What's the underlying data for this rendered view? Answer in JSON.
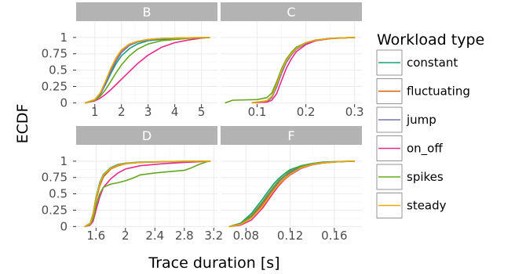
{
  "chart_data": {
    "type": "line",
    "ylabel": "ECDF",
    "xlabel": "Trace duration [s]",
    "legend": {
      "title": "Workload type",
      "placement": "right",
      "entries": [
        "constant",
        "fluctuating",
        "jump",
        "on_off",
        "spikes",
        "steady"
      ]
    },
    "colors": {
      "constant": "#1b9e77",
      "fluctuating": "#d95f02",
      "jump": "#7570b3",
      "on_off": "#e7298a",
      "spikes": "#66a61e",
      "steady": "#e6ab02"
    },
    "y_ticks": [
      0,
      0.25,
      0.5,
      0.75,
      1
    ],
    "y_tick_labels": [
      "0",
      "0.25",
      "0.5",
      "0.75",
      "1"
    ],
    "ylim": [
      -0.02,
      1.25
    ],
    "grid": true,
    "facets": [
      {
        "label": "B",
        "x_ticks": [
          1,
          2,
          3,
          4,
          5
        ],
        "x_tick_labels": [
          "1",
          "2",
          "3",
          "4",
          "5"
        ],
        "xlim": [
          0.3,
          5.6
        ],
        "series": [
          {
            "name": "constant",
            "x": [
              0.65,
              1.0,
              1.2,
              1.4,
              1.6,
              1.8,
              2.0,
              2.3,
              2.6,
              3.0,
              3.5,
              4.0,
              4.5,
              5.0,
              5.3
            ],
            "y": [
              0,
              0.05,
              0.13,
              0.28,
              0.45,
              0.6,
              0.72,
              0.83,
              0.9,
              0.95,
              0.97,
              0.98,
              0.99,
              0.995,
              1
            ]
          },
          {
            "name": "fluctuating",
            "x": [
              0.65,
              1.0,
              1.2,
              1.4,
              1.6,
              1.8,
              2.0,
              2.3,
              2.6,
              3.0,
              3.5,
              4.0,
              4.5,
              5.0,
              5.3
            ],
            "y": [
              0,
              0.05,
              0.14,
              0.32,
              0.52,
              0.68,
              0.8,
              0.9,
              0.94,
              0.97,
              0.985,
              0.99,
              0.995,
              0.998,
              1
            ]
          },
          {
            "name": "jump",
            "x": [
              0.65,
              1.0,
              1.2,
              1.4,
              1.6,
              1.8,
              2.0,
              2.3,
              2.6,
              3.0,
              3.5,
              4.0,
              4.5,
              5.0,
              5.3
            ],
            "y": [
              0,
              0.04,
              0.12,
              0.29,
              0.48,
              0.64,
              0.77,
              0.88,
              0.93,
              0.96,
              0.98,
              0.99,
              0.995,
              0.998,
              1
            ]
          },
          {
            "name": "on_off",
            "x": [
              0.65,
              1.0,
              1.2,
              1.4,
              1.6,
              1.8,
              2.0,
              2.3,
              2.6,
              3.0,
              3.5,
              4.0,
              4.5,
              5.0,
              5.3
            ],
            "y": [
              0,
              0.03,
              0.07,
              0.13,
              0.2,
              0.28,
              0.36,
              0.48,
              0.6,
              0.73,
              0.85,
              0.92,
              0.96,
              0.99,
              1
            ]
          },
          {
            "name": "spikes",
            "x": [
              0.65,
              1.0,
              1.2,
              1.4,
              1.6,
              1.8,
              2.0,
              2.3,
              2.6,
              3.0,
              3.5,
              4.0,
              4.5,
              5.0,
              5.3
            ],
            "y": [
              0,
              0.04,
              0.1,
              0.2,
              0.33,
              0.46,
              0.58,
              0.72,
              0.82,
              0.9,
              0.95,
              0.97,
              0.985,
              0.995,
              1
            ]
          },
          {
            "name": "steady",
            "x": [
              0.65,
              1.0,
              1.2,
              1.4,
              1.6,
              1.8,
              2.0,
              2.3,
              2.6,
              3.0,
              3.5,
              4.0,
              4.5,
              5.0,
              5.3
            ],
            "y": [
              0,
              0.05,
              0.15,
              0.33,
              0.53,
              0.69,
              0.81,
              0.9,
              0.94,
              0.97,
              0.985,
              0.99,
              0.995,
              0.998,
              1
            ]
          }
        ]
      },
      {
        "label": "C",
        "x_ticks": [
          0.1,
          0.2,
          0.3
        ],
        "x_tick_labels": [
          "0.1",
          "0.2",
          "0.3"
        ],
        "xlim": [
          0.025,
          0.315
        ],
        "series": [
          {
            "name": "constant",
            "x": [
              0.09,
              0.12,
              0.13,
              0.14,
              0.15,
              0.16,
              0.17,
              0.18,
              0.2,
              0.22,
              0.25,
              0.28,
              0.3
            ],
            "y": [
              0,
              0.03,
              0.1,
              0.28,
              0.5,
              0.66,
              0.76,
              0.84,
              0.92,
              0.96,
              0.985,
              0.995,
              1
            ]
          },
          {
            "name": "fluctuating",
            "x": [
              0.09,
              0.12,
              0.13,
              0.14,
              0.15,
              0.16,
              0.17,
              0.18,
              0.2,
              0.22,
              0.25,
              0.28,
              0.3
            ],
            "y": [
              0,
              0.03,
              0.09,
              0.26,
              0.47,
              0.63,
              0.74,
              0.82,
              0.91,
              0.955,
              0.985,
              0.995,
              1
            ]
          },
          {
            "name": "jump",
            "x": [
              0.09,
              0.12,
              0.13,
              0.14,
              0.15,
              0.16,
              0.17,
              0.18,
              0.2,
              0.22,
              0.25,
              0.28,
              0.3
            ],
            "y": [
              0,
              0.02,
              0.08,
              0.24,
              0.45,
              0.62,
              0.73,
              0.82,
              0.91,
              0.955,
              0.985,
              0.995,
              1
            ]
          },
          {
            "name": "on_off",
            "x": [
              0.09,
              0.12,
              0.13,
              0.14,
              0.15,
              0.16,
              0.17,
              0.18,
              0.2,
              0.22,
              0.25,
              0.28,
              0.3
            ],
            "y": [
              0,
              0.01,
              0.04,
              0.14,
              0.34,
              0.53,
              0.67,
              0.78,
              0.89,
              0.95,
              0.98,
              0.995,
              1
            ]
          },
          {
            "name": "spikes",
            "x": [
              0.035,
              0.05,
              0.1,
              0.12,
              0.13,
              0.14,
              0.15,
              0.16,
              0.17,
              0.18,
              0.2,
              0.22,
              0.25,
              0.28,
              0.3
            ],
            "y": [
              0,
              0.04,
              0.05,
              0.08,
              0.15,
              0.32,
              0.52,
              0.67,
              0.77,
              0.85,
              0.92,
              0.96,
              0.985,
              0.995,
              1
            ]
          },
          {
            "name": "steady",
            "x": [
              0.09,
              0.12,
              0.13,
              0.14,
              0.15,
              0.16,
              0.17,
              0.18,
              0.2,
              0.22,
              0.25,
              0.28,
              0.3
            ],
            "y": [
              0,
              0.03,
              0.1,
              0.28,
              0.49,
              0.65,
              0.75,
              0.83,
              0.92,
              0.96,
              0.985,
              0.995,
              1
            ]
          }
        ]
      },
      {
        "label": "D",
        "x_ticks": [
          1.6,
          2.0,
          2.4,
          2.8,
          3.2
        ],
        "x_tick_labels": [
          "1.6",
          "2",
          "2.4",
          "2.8",
          "3.2"
        ],
        "xlim": [
          1.33,
          3.25
        ],
        "series": [
          {
            "name": "constant",
            "x": [
              1.45,
              1.52,
              1.56,
              1.6,
              1.65,
              1.7,
              1.8,
              1.9,
              2.0,
              2.2,
              2.5,
              2.8,
              3.15
            ],
            "y": [
              0,
              0.05,
              0.2,
              0.45,
              0.67,
              0.8,
              0.9,
              0.95,
              0.97,
              0.985,
              0.993,
              0.997,
              1
            ]
          },
          {
            "name": "fluctuating",
            "x": [
              1.45,
              1.52,
              1.56,
              1.6,
              1.65,
              1.7,
              1.8,
              1.9,
              2.0,
              2.2,
              2.5,
              2.8,
              3.15
            ],
            "y": [
              0,
              0.04,
              0.17,
              0.4,
              0.62,
              0.76,
              0.88,
              0.93,
              0.96,
              0.98,
              0.99,
              0.996,
              1
            ]
          },
          {
            "name": "jump",
            "x": [
              1.45,
              1.52,
              1.56,
              1.6,
              1.65,
              1.7,
              1.8,
              1.9,
              2.0,
              2.2,
              2.5,
              2.8,
              3.15
            ],
            "y": [
              0,
              0.04,
              0.18,
              0.42,
              0.64,
              0.78,
              0.89,
              0.94,
              0.965,
              0.98,
              0.99,
              0.996,
              1
            ]
          },
          {
            "name": "on_off",
            "x": [
              1.45,
              1.52,
              1.56,
              1.6,
              1.65,
              1.7,
              1.8,
              1.9,
              2.0,
              2.2,
              2.5,
              2.8,
              3.15
            ],
            "y": [
              0,
              0.02,
              0.08,
              0.25,
              0.45,
              0.6,
              0.73,
              0.82,
              0.88,
              0.93,
              0.96,
              0.98,
              1
            ]
          },
          {
            "name": "spikes",
            "x": [
              1.45,
              1.52,
              1.56,
              1.6,
              1.65,
              1.7,
              1.8,
              1.9,
              2.0,
              2.1,
              2.2,
              2.4,
              2.6,
              2.8,
              2.9,
              3.0,
              3.1,
              3.15
            ],
            "y": [
              0,
              0.03,
              0.12,
              0.32,
              0.5,
              0.6,
              0.65,
              0.67,
              0.7,
              0.74,
              0.79,
              0.82,
              0.84,
              0.86,
              0.9,
              0.95,
              0.99,
              1
            ]
          },
          {
            "name": "steady",
            "x": [
              1.45,
              1.52,
              1.56,
              1.6,
              1.65,
              1.7,
              1.8,
              1.9,
              2.0,
              2.2,
              2.5,
              2.8,
              3.15
            ],
            "y": [
              0,
              0.04,
              0.19,
              0.43,
              0.65,
              0.79,
              0.89,
              0.94,
              0.965,
              0.982,
              0.992,
              0.997,
              1
            ]
          }
        ]
      },
      {
        "label": "F",
        "x_ticks": [
          0.08,
          0.12,
          0.16
        ],
        "x_tick_labels": [
          "0.08",
          "0.12",
          "0.16"
        ],
        "xlim": [
          0.057,
          0.185
        ],
        "series": [
          {
            "name": "constant",
            "x": [
              0.065,
              0.075,
              0.085,
              0.095,
              0.1,
              0.105,
              0.11,
              0.115,
              0.12,
              0.13,
              0.14,
              0.15,
              0.165,
              0.178
            ],
            "y": [
              0,
              0.05,
              0.2,
              0.42,
              0.54,
              0.65,
              0.74,
              0.81,
              0.87,
              0.93,
              0.965,
              0.985,
              0.995,
              1
            ]
          },
          {
            "name": "fluctuating",
            "x": [
              0.065,
              0.075,
              0.085,
              0.095,
              0.1,
              0.105,
              0.11,
              0.115,
              0.12,
              0.13,
              0.14,
              0.15,
              0.165,
              0.178
            ],
            "y": [
              0,
              0.03,
              0.14,
              0.33,
              0.45,
              0.56,
              0.66,
              0.74,
              0.81,
              0.9,
              0.95,
              0.975,
              0.993,
              1
            ]
          },
          {
            "name": "jump",
            "x": [
              0.065,
              0.075,
              0.085,
              0.095,
              0.1,
              0.105,
              0.11,
              0.115,
              0.12,
              0.13,
              0.14,
              0.15,
              0.165,
              0.178
            ],
            "y": [
              0,
              0.04,
              0.16,
              0.36,
              0.48,
              0.59,
              0.69,
              0.77,
              0.83,
              0.91,
              0.955,
              0.978,
              0.994,
              1
            ]
          },
          {
            "name": "on_off",
            "x": [
              0.065,
              0.075,
              0.085,
              0.095,
              0.1,
              0.105,
              0.11,
              0.115,
              0.12,
              0.13,
              0.14,
              0.15,
              0.165,
              0.178
            ],
            "y": [
              0,
              0.02,
              0.1,
              0.28,
              0.4,
              0.52,
              0.63,
              0.72,
              0.79,
              0.89,
              0.945,
              0.972,
              0.992,
              1
            ]
          },
          {
            "name": "spikes",
            "x": [
              0.065,
              0.075,
              0.085,
              0.095,
              0.1,
              0.105,
              0.11,
              0.115,
              0.12,
              0.13,
              0.14,
              0.15,
              0.165,
              0.178
            ],
            "y": [
              0,
              0.04,
              0.17,
              0.38,
              0.5,
              0.61,
              0.71,
              0.78,
              0.85,
              0.92,
              0.96,
              0.98,
              0.995,
              1
            ]
          },
          {
            "name": "steady",
            "x": [
              0.065,
              0.075,
              0.085,
              0.095,
              0.1,
              0.105,
              0.11,
              0.115,
              0.12,
              0.13,
              0.14,
              0.15,
              0.165,
              0.178
            ],
            "y": [
              0,
              0.03,
              0.13,
              0.31,
              0.43,
              0.55,
              0.65,
              0.73,
              0.8,
              0.9,
              0.95,
              0.976,
              0.993,
              1
            ]
          }
        ]
      }
    ]
  }
}
